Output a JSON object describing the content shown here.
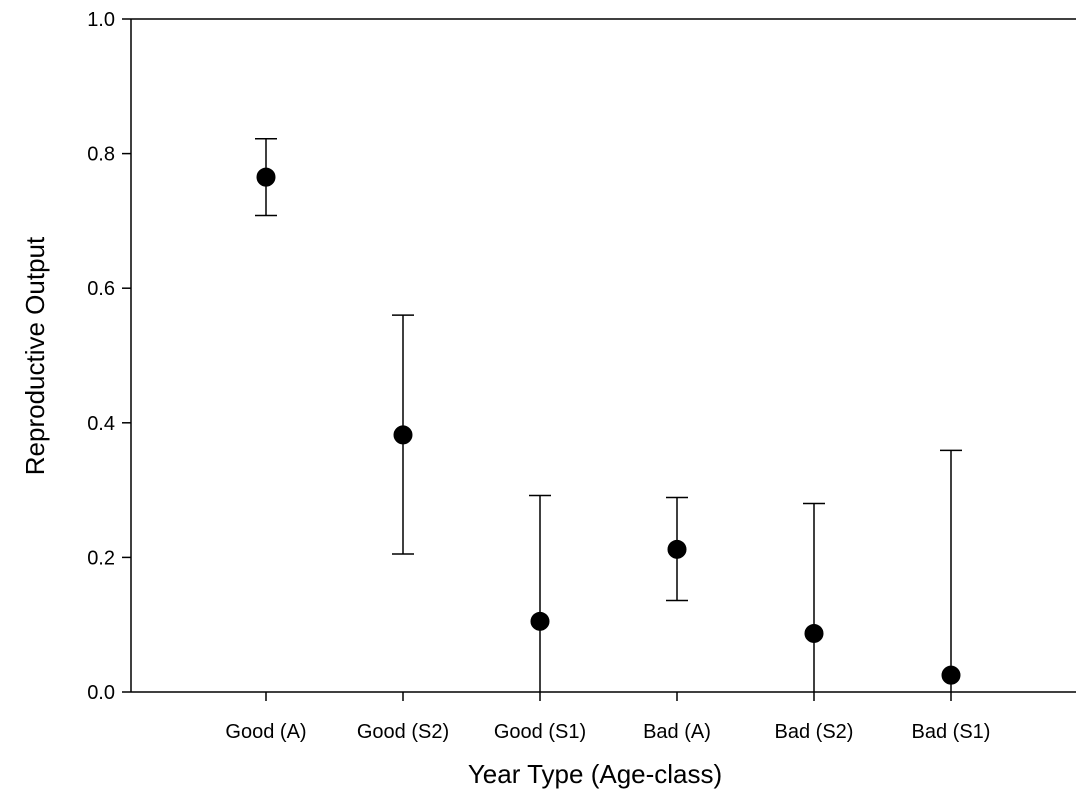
{
  "chart_data": {
    "type": "scatter",
    "xlabel": "Year Type (Age-class)",
    "ylabel": "Reproductive Output",
    "ylim": [
      0.0,
      1.0
    ],
    "yticks": [
      "0.0",
      "0.2",
      "0.4",
      "0.6",
      "0.8",
      "1.0"
    ],
    "categories": [
      "Good (A)",
      "Good (S2)",
      "Good (S1)",
      "Bad (A)",
      "Bad (S2)",
      "Bad (S1)"
    ],
    "series": [
      {
        "values": [
          0.765,
          0.382,
          0.105,
          0.212,
          0.087,
          0.025
        ],
        "error_low": [
          0.708,
          0.205,
          0.0,
          0.136,
          0.0,
          0.0
        ],
        "error_high": [
          0.822,
          0.56,
          0.292,
          0.289,
          0.28,
          0.359
        ]
      }
    ],
    "grid": false,
    "marker_color": "#000000"
  }
}
